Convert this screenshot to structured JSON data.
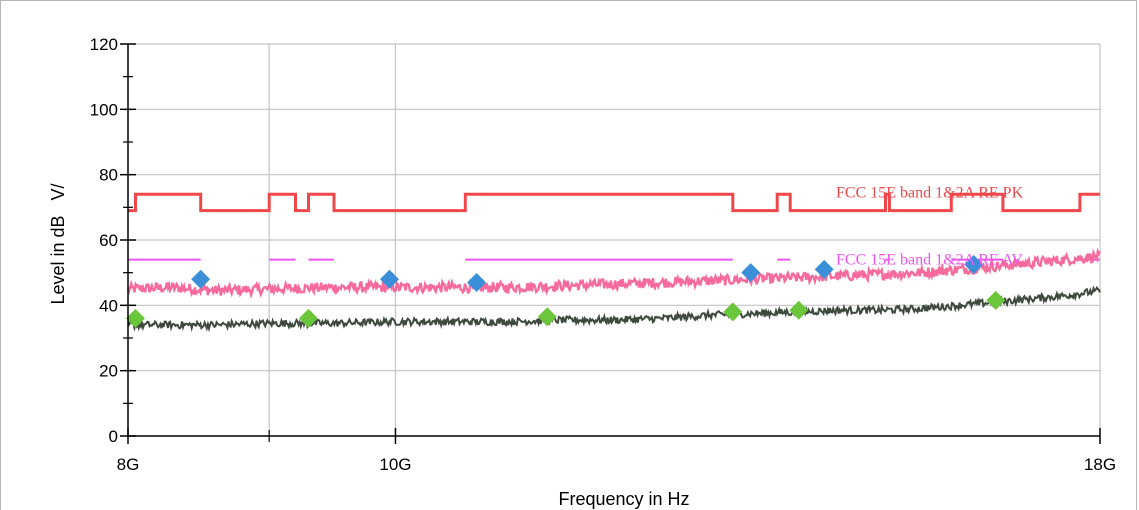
{
  "chart_data": {
    "type": "line",
    "xlabel": "Frequency in Hz",
    "ylabel": "Level in dB   V/",
    "x_scale": "log",
    "xlim": [
      8000000000,
      18000000000
    ],
    "ylim": [
      0,
      120
    ],
    "y_ticks": [
      0,
      20,
      40,
      60,
      80,
      100,
      120
    ],
    "y_minor_ticks": [
      10,
      30,
      50,
      70,
      90,
      110
    ],
    "x_ticks": [
      {
        "value": 8000000000,
        "label": "8G"
      },
      {
        "value": 10000000000,
        "label": "10G"
      },
      {
        "value": 18000000000,
        "label": "18G"
      }
    ],
    "x_minor_ticks": [
      9000000000
    ],
    "grid": true,
    "x_grid": [
      9000000000,
      10000000000
    ],
    "colors": {
      "pk_limit": "#f0474a",
      "av_limit": "#ee55ee",
      "pk_trace": "#f76a9c",
      "av_trace": "#3e4a3e",
      "pk_markers": "#3b8fd9",
      "av_markers": "#6cc63c",
      "grid": "#c4c4c4"
    },
    "series": [
      {
        "name": "FCC 15E band 1&2A RE PK",
        "kind": "limit",
        "segments": [
          [
            8000000000,
            8050000000,
            69
          ],
          [
            8050000000,
            8500000000,
            74
          ],
          [
            8500000000,
            9000000000,
            69
          ],
          [
            9000000000,
            9200000000,
            74
          ],
          [
            9200000000,
            9300000000,
            69
          ],
          [
            9300000000,
            9500000000,
            74
          ],
          [
            9500000000,
            10600000000,
            69
          ],
          [
            10600000000,
            13250000000,
            74
          ],
          [
            13250000000,
            13750000000,
            69
          ],
          [
            13750000000,
            13900000000,
            74
          ],
          [
            13900000000,
            15050000000,
            69
          ],
          [
            15050000000,
            15100000000,
            74
          ],
          [
            15100000000,
            15900000000,
            69
          ],
          [
            15900000000,
            16600000000,
            74
          ],
          [
            16600000000,
            17700000000,
            69
          ],
          [
            17700000000,
            18000000000,
            74
          ]
        ]
      },
      {
        "name": "FCC 15E band 1&2A RE AV",
        "kind": "limit",
        "segments": [
          [
            8000000000,
            8500000000,
            54
          ],
          [
            9000000000,
            9200000000,
            54
          ],
          [
            9300000000,
            9500000000,
            54
          ],
          [
            10600000000,
            13250000000,
            54
          ],
          [
            13750000000,
            13900000000,
            54
          ],
          [
            15050000000,
            15100000000,
            54
          ],
          [
            15900000000,
            16600000000,
            54
          ],
          [
            17700000000,
            18000000000,
            54
          ]
        ]
      },
      {
        "name": "",
        "kind": "trace",
        "x": [
          8000000000,
          8300000000,
          8600000000,
          9000000000,
          9500000000,
          10000000000,
          10500000000,
          11000000000,
          11500000000,
          12000000000,
          12500000000,
          13000000000,
          13500000000,
          14000000000,
          14500000000,
          15000000000,
          15500000000,
          16000000000,
          16500000000,
          17000000000,
          17500000000,
          18000000000
        ],
        "values": [
          45,
          45.5,
          44.5,
          45,
          45.5,
          45.5,
          45.5,
          45.5,
          46,
          46.5,
          47,
          47.5,
          48,
          48.5,
          49,
          49.5,
          50,
          51,
          52,
          53,
          54,
          55
        ]
      },
      {
        "name": "",
        "kind": "trace",
        "x": [
          8000000000,
          8300000000,
          8600000000,
          9000000000,
          9500000000,
          10000000000,
          10500000000,
          11000000000,
          11500000000,
          12000000000,
          12500000000,
          13000000000,
          13500000000,
          14000000000,
          14500000000,
          15000000000,
          15500000000,
          16000000000,
          16500000000,
          17000000000,
          17500000000,
          18000000000
        ],
        "values": [
          34,
          34,
          34,
          34.5,
          34.5,
          35,
          35,
          35,
          35.5,
          35.5,
          36,
          37,
          37.5,
          38,
          38.5,
          38.5,
          39,
          40,
          41,
          42,
          43,
          44.5
        ]
      },
      {
        "name": "",
        "kind": "markers",
        "x": [
          8500000000,
          9950000000,
          10700000000,
          13450000000,
          14300000000,
          16200000000
        ],
        "values": [
          48,
          48,
          47,
          50,
          51,
          52.5
        ]
      },
      {
        "name": "",
        "kind": "markers",
        "x": [
          8050000000,
          9300000000,
          11350000000,
          13250000000,
          14000000000,
          16500000000
        ],
        "values": [
          36,
          36,
          36.5,
          38,
          38.5,
          41.5
        ]
      }
    ]
  }
}
